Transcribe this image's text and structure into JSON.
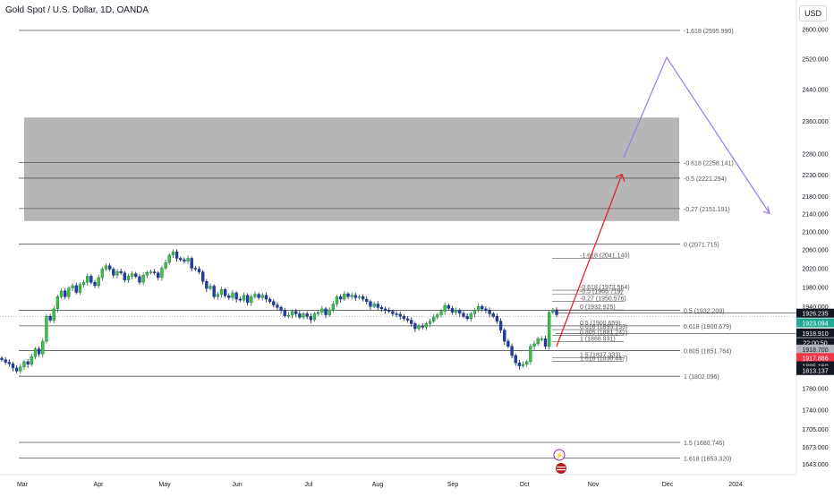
{
  "header": {
    "title": "Gold Spot / U.S. Dollar, 1D, OANDA",
    "currency": "USD"
  },
  "chart_data": {
    "type": "candlestick",
    "y_axis": {
      "ticks": [
        "2600.000",
        "2520.000",
        "2440.000",
        "2360.000",
        "2280.000",
        "2230.000",
        "2180.000",
        "2140.000",
        "2100.000",
        "2060.000",
        "2020.000",
        "1980.000",
        "1940.000",
        "1780.000",
        "1740.000",
        "1705.000",
        "1673.000",
        "1643.000"
      ],
      "scale": "log"
    },
    "x_axis": {
      "ticks": [
        "Mar",
        "Apr",
        "May",
        "Jun",
        "Jul",
        "Aug",
        "Sep",
        "Oct",
        "Nov",
        "Dec",
        "2024"
      ]
    },
    "upper_fib": [
      {
        "label": "-1.618 (2595.990)",
        "value": 2595.99
      },
      {
        "label": "-0.618 (2258.141)",
        "value": 2258.141
      },
      {
        "label": "-0.5 (2221.294)",
        "value": 2221.294
      },
      {
        "label": "-0.27 (2151.191)",
        "value": 2151.191
      },
      {
        "label": "0 (2071.715)",
        "value": 2071.715
      },
      {
        "label": "0.5 (1932.209)",
        "value": 1932.209
      },
      {
        "label": "0.618 (1900.679)",
        "value": 1900.679
      },
      {
        "label": "0.805 (1851.764)",
        "value": 1851.764
      },
      {
        "label": "1 (1802.096)",
        "value": 1802.096
      },
      {
        "label": "1.5 (1680.746)",
        "value": 1680.746
      },
      {
        "label": "1.618 (1653.320)",
        "value": 1653.32
      }
    ],
    "inner_fib": [
      {
        "label": "-1.618 (2041.140)",
        "value": 2041.14
      },
      {
        "label": "-0.618 (1973.564)",
        "value": 1973.564
      },
      {
        "label": "-0.5 (1965.719)",
        "value": 1965.719
      },
      {
        "label": "-0.27 (1950.576)",
        "value": 1950.576
      },
      {
        "label": "0 (1932.925)",
        "value": 1932.925
      },
      {
        "label": "0.5 (1900.659)",
        "value": 1900.659
      },
      {
        "label": "0.618 (1893.153)",
        "value": 1893.153
      },
      {
        "label": "0.805 (1881.242)",
        "value": 1881.242
      },
      {
        "label": "1 (1868.931)",
        "value": 1868.931
      },
      {
        "label": "1.5 (1837.333)",
        "value": 1837.333
      },
      {
        "label": "1.618 (1830.447)",
        "value": 1830.447
      }
    ],
    "zone": {
      "top": 2368,
      "bottom": 2123
    },
    "price_tags": [
      {
        "text": "1926.235",
        "value": 1926.235,
        "bg": "#131722",
        "fg": "#ffffff"
      },
      {
        "text": "1923.094",
        "value": 1923.094,
        "bg": "#22ab94",
        "fg": "#ffffff"
      },
      {
        "text": "1918.910",
        "value": 1918.91,
        "bg": "#131722",
        "fg": "#ffffff"
      },
      {
        "text": "22:00:50",
        "value": 1916.0,
        "bg": "#131722",
        "fg": "#ffffff"
      },
      {
        "text": "1918.700",
        "value": 1918.7,
        "bg": "#b2b5be",
        "fg": "#131722"
      },
      {
        "text": "1917.886",
        "value": 1917.886,
        "bg": "#f23645",
        "fg": "#ffffff"
      },
      {
        "text": "1885.160",
        "value": 1885.16,
        "bg": "#131722",
        "fg": "#ffffff"
      },
      {
        "text": "1813.137",
        "value": 1813.137,
        "bg": "#131722",
        "fg": "#ffffff"
      }
    ],
    "projection_red": {
      "from": {
        "date_index": 146,
        "value": 1860
      },
      "to": {
        "date_index": 165,
        "value": 2230
      }
    },
    "projection_purple": [
      {
        "month": "Oct-end",
        "value": 2270
      },
      {
        "month": "Nov-end",
        "value": 2523
      },
      {
        "month": "Dec-mid",
        "value": 2140
      }
    ],
    "closes": [
      1834,
      1829,
      1826,
      1818,
      1812,
      1820,
      1830,
      1825,
      1840,
      1855,
      1845,
      1870,
      1920,
      1912,
      1935,
      1960,
      1972,
      1960,
      1978,
      1983,
      1969,
      1985,
      1990,
      2003,
      1990,
      1983,
      2000,
      2018,
      2025,
      2018,
      2005,
      2013,
      2010,
      1995,
      2003,
      2008,
      2002,
      1990,
      2005,
      2011,
      2012,
      2010,
      2000,
      2020,
      2032,
      2048,
      2055,
      2041,
      2038,
      2035,
      2041,
      2020,
      2018,
      2012,
      1992,
      1977,
      1982,
      1960,
      1965,
      1975,
      1962,
      1958,
      1968,
      1955,
      1953,
      1963,
      1948,
      1960,
      1965,
      1958,
      1963,
      1955,
      1950,
      1943,
      1938,
      1932,
      1921,
      1922,
      1930,
      1925,
      1918,
      1925,
      1920,
      1913,
      1925,
      1928,
      1935,
      1923,
      1933,
      1945,
      1960,
      1955,
      1966,
      1960,
      1963,
      1958,
      1960,
      1955,
      1950,
      1940,
      1945,
      1938,
      1935,
      1932,
      1930,
      1925,
      1924,
      1920,
      1915,
      1912,
      1905,
      1895,
      1900,
      1898,
      1905,
      1910,
      1918,
      1923,
      1930,
      1942,
      1936,
      1928,
      1932,
      1926,
      1920,
      1915,
      1925,
      1932,
      1940,
      1935,
      1932,
      1925,
      1920,
      1910,
      1892,
      1870,
      1860,
      1842,
      1828,
      1822,
      1825,
      1830,
      1860,
      1865,
      1875,
      1875,
      1860,
      1928,
      1932,
      1923
    ],
    "start_month_label": "Mar"
  }
}
